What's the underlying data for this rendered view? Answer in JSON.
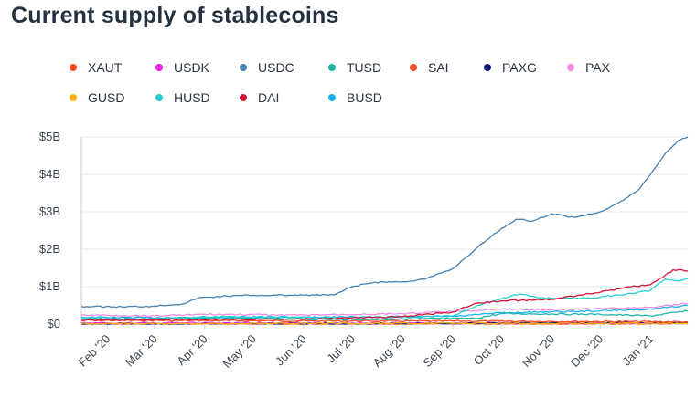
{
  "chart_data": {
    "type": "line",
    "title": "Current supply of stablecoins",
    "y_ticks": [
      "$0",
      "$1B",
      "$2B",
      "$3B",
      "$4B",
      "$5B"
    ],
    "ylim": [
      0,
      5
    ],
    "y_unit": "billions USD",
    "x_ticks": [
      "Feb '20",
      "Mar '20",
      "Apr '20",
      "May '20",
      "Jun '20",
      "Jul '20",
      "Aug '20",
      "Sep '20",
      "Oct '20",
      "Nov '20",
      "Dec '20",
      "Jan '21"
    ],
    "x_tick_dates": [
      "2020-02-01",
      "2020-03-01",
      "2020-04-01",
      "2020-05-01",
      "2020-06-01",
      "2020-07-01",
      "2020-08-01",
      "2020-09-01",
      "2020-10-01",
      "2020-11-01",
      "2020-12-01",
      "2021-01-01"
    ],
    "xlim": [
      "2020-01-16",
      "2021-01-24"
    ],
    "grid": "horizontal",
    "legend_position": "top",
    "series": [
      {
        "name": "XAUT",
        "color": "#ff4a1c",
        "points": [
          [
            "2020-01-16",
            0.0
          ],
          [
            "2020-09-01",
            0.0
          ],
          [
            "2021-01-24",
            0.01
          ]
        ]
      },
      {
        "name": "USDK",
        "color": "#f01ce8",
        "points": [
          [
            "2020-01-16",
            0.03
          ],
          [
            "2020-07-01",
            0.03
          ],
          [
            "2021-01-24",
            0.03
          ]
        ]
      },
      {
        "name": "USDC",
        "color": "#4682b4",
        "points": [
          [
            "2020-01-16",
            0.47
          ],
          [
            "2020-02-10",
            0.46
          ],
          [
            "2020-03-01",
            0.48
          ],
          [
            "2020-03-20",
            0.55
          ],
          [
            "2020-03-28",
            0.7
          ],
          [
            "2020-04-15",
            0.75
          ],
          [
            "2020-05-01",
            0.77
          ],
          [
            "2020-05-15",
            0.77
          ],
          [
            "2020-06-01",
            0.77
          ],
          [
            "2020-06-20",
            0.78
          ],
          [
            "2020-07-01",
            1.0
          ],
          [
            "2020-07-15",
            1.12
          ],
          [
            "2020-08-01",
            1.13
          ],
          [
            "2020-08-15",
            1.2
          ],
          [
            "2020-09-01",
            1.48
          ],
          [
            "2020-09-15",
            2.0
          ],
          [
            "2020-09-25",
            2.35
          ],
          [
            "2020-10-01",
            2.55
          ],
          [
            "2020-10-10",
            2.8
          ],
          [
            "2020-10-20",
            2.75
          ],
          [
            "2020-11-01",
            2.95
          ],
          [
            "2020-11-15",
            2.85
          ],
          [
            "2020-12-01",
            3.0
          ],
          [
            "2020-12-15",
            3.3
          ],
          [
            "2020-12-25",
            3.6
          ],
          [
            "2021-01-01",
            4.0
          ],
          [
            "2021-01-10",
            4.55
          ],
          [
            "2021-01-18",
            4.9
          ],
          [
            "2021-01-24",
            5.0
          ]
        ]
      },
      {
        "name": "TUSD",
        "color": "#1fb5a6",
        "points": [
          [
            "2020-01-16",
            0.14
          ],
          [
            "2020-04-01",
            0.15
          ],
          [
            "2020-07-01",
            0.12
          ],
          [
            "2020-09-15",
            0.15
          ],
          [
            "2020-10-01",
            0.28
          ],
          [
            "2020-11-01",
            0.27
          ],
          [
            "2020-12-01",
            0.26
          ],
          [
            "2021-01-01",
            0.22
          ],
          [
            "2021-01-24",
            0.35
          ]
        ]
      },
      {
        "name": "SAI",
        "color": "#f04e23",
        "points": [
          [
            "2020-01-16",
            0.1
          ],
          [
            "2020-04-01",
            0.09
          ],
          [
            "2020-07-01",
            0.08
          ],
          [
            "2020-09-01",
            0.08
          ],
          [
            "2021-01-24",
            0.06
          ]
        ]
      },
      {
        "name": "PAXG",
        "color": "#0b1a7a",
        "points": [
          [
            "2020-01-16",
            0.0
          ],
          [
            "2020-09-01",
            0.02
          ],
          [
            "2021-01-24",
            0.04
          ]
        ]
      },
      {
        "name": "PAX",
        "color": "#f08ce8",
        "points": [
          [
            "2020-01-16",
            0.24
          ],
          [
            "2020-03-01",
            0.22
          ],
          [
            "2020-04-01",
            0.26
          ],
          [
            "2020-06-01",
            0.24
          ],
          [
            "2020-08-01",
            0.28
          ],
          [
            "2020-09-01",
            0.33
          ],
          [
            "2020-10-01",
            0.4
          ],
          [
            "2020-11-01",
            0.38
          ],
          [
            "2020-12-01",
            0.42
          ],
          [
            "2021-01-01",
            0.45
          ],
          [
            "2021-01-24",
            0.55
          ]
        ]
      },
      {
        "name": "GUSD",
        "color": "#ffb30f",
        "points": [
          [
            "2020-01-16",
            0.01
          ],
          [
            "2020-09-01",
            0.02
          ],
          [
            "2021-01-24",
            0.02
          ]
        ]
      },
      {
        "name": "HUSD",
        "color": "#24cfd5",
        "points": [
          [
            "2020-01-16",
            0.14
          ],
          [
            "2020-03-01",
            0.12
          ],
          [
            "2020-04-01",
            0.2
          ],
          [
            "2020-06-01",
            0.19
          ],
          [
            "2020-08-01",
            0.18
          ],
          [
            "2020-09-01",
            0.22
          ],
          [
            "2020-09-20",
            0.55
          ],
          [
            "2020-10-01",
            0.68
          ],
          [
            "2020-10-12",
            0.8
          ],
          [
            "2020-10-25",
            0.7
          ],
          [
            "2020-11-15",
            0.68
          ],
          [
            "2020-12-01",
            0.72
          ],
          [
            "2020-12-20",
            0.82
          ],
          [
            "2021-01-01",
            0.9
          ],
          [
            "2021-01-10",
            1.2
          ],
          [
            "2021-01-18",
            1.15
          ],
          [
            "2021-01-24",
            1.22
          ]
        ]
      },
      {
        "name": "DAI",
        "color": "#d3173a",
        "points": [
          [
            "2020-01-16",
            0.1
          ],
          [
            "2020-03-01",
            0.12
          ],
          [
            "2020-04-01",
            0.12
          ],
          [
            "2020-06-01",
            0.13
          ],
          [
            "2020-08-01",
            0.2
          ],
          [
            "2020-09-01",
            0.32
          ],
          [
            "2020-09-15",
            0.55
          ],
          [
            "2020-10-01",
            0.62
          ],
          [
            "2020-11-01",
            0.66
          ],
          [
            "2020-12-01",
            0.85
          ],
          [
            "2020-12-20",
            1.0
          ],
          [
            "2021-01-01",
            1.05
          ],
          [
            "2021-01-10",
            1.3
          ],
          [
            "2021-01-15",
            1.45
          ],
          [
            "2021-01-24",
            1.42
          ]
        ]
      },
      {
        "name": "BUSD",
        "color": "#18b3f0",
        "points": [
          [
            "2020-01-16",
            0.18
          ],
          [
            "2020-04-01",
            0.17
          ],
          [
            "2020-06-01",
            0.18
          ],
          [
            "2020-09-01",
            0.2
          ],
          [
            "2020-10-01",
            0.3
          ],
          [
            "2020-11-01",
            0.33
          ],
          [
            "2020-12-01",
            0.35
          ],
          [
            "2021-01-01",
            0.4
          ],
          [
            "2021-01-24",
            0.5
          ]
        ]
      }
    ]
  }
}
